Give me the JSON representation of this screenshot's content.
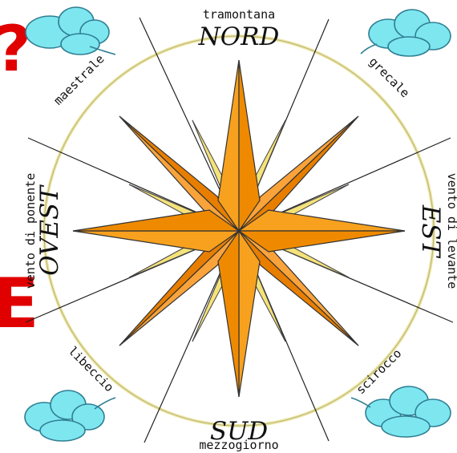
{
  "cardinals": {
    "north": "NORD",
    "south": "SUD",
    "east": "EST",
    "west": "OVEST"
  },
  "winds": {
    "north": "tramontana",
    "south": "mezzogiorno",
    "east": "vento di levante",
    "west": "vento di ponente",
    "northeast": "grecale",
    "northwest": "maestrale",
    "southeast": "scirocco",
    "southwest": "libeccio"
  },
  "edge_marks": {
    "top_left": "?",
    "mid_left": "E"
  },
  "colors": {
    "main_star_light": "#f7a11e",
    "main_star_dark": "#ef8a00",
    "diagonal_star_light": "#f9a33a",
    "diagonal_star_dark": "#e87e00",
    "minor_star": "#fff5a8",
    "ring": "#ece6a0",
    "cloud_fill": "#7ee6ef",
    "cloud_stroke": "#2f7f93",
    "red_marks": "#e00000"
  }
}
